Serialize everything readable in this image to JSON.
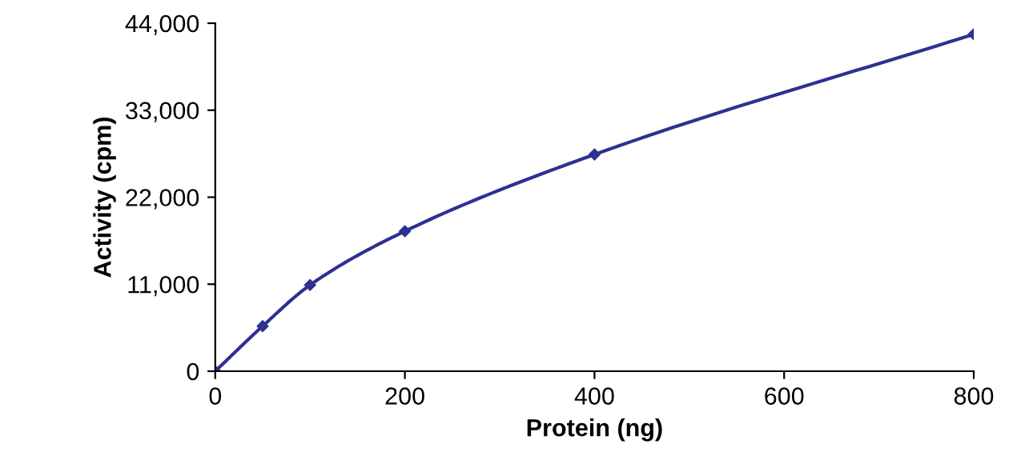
{
  "chart_data": {
    "type": "line",
    "xlabel": "Protein (ng)",
    "ylabel": "Activity (cpm)",
    "x": [
      0,
      50,
      100,
      200,
      400,
      800
    ],
    "series": [
      {
        "color": "#2e3192",
        "values": [
          0,
          5700,
          10900,
          17700,
          27400,
          42600
        ]
      }
    ],
    "xlim": [
      0,
      800
    ],
    "xticks": [
      0,
      200,
      400,
      600,
      800
    ],
    "ylim": [
      0,
      44000
    ],
    "yticks": [
      0,
      {
        "value": 11000,
        "label": "11,000"
      },
      {
        "value": 22000,
        "label": "22,000"
      },
      {
        "value": 33000,
        "label": "33,000"
      },
      {
        "value": 44000,
        "label": "44,000"
      }
    ],
    "marker": "diamond",
    "line_style": "solid",
    "grid": false,
    "legend": false
  }
}
